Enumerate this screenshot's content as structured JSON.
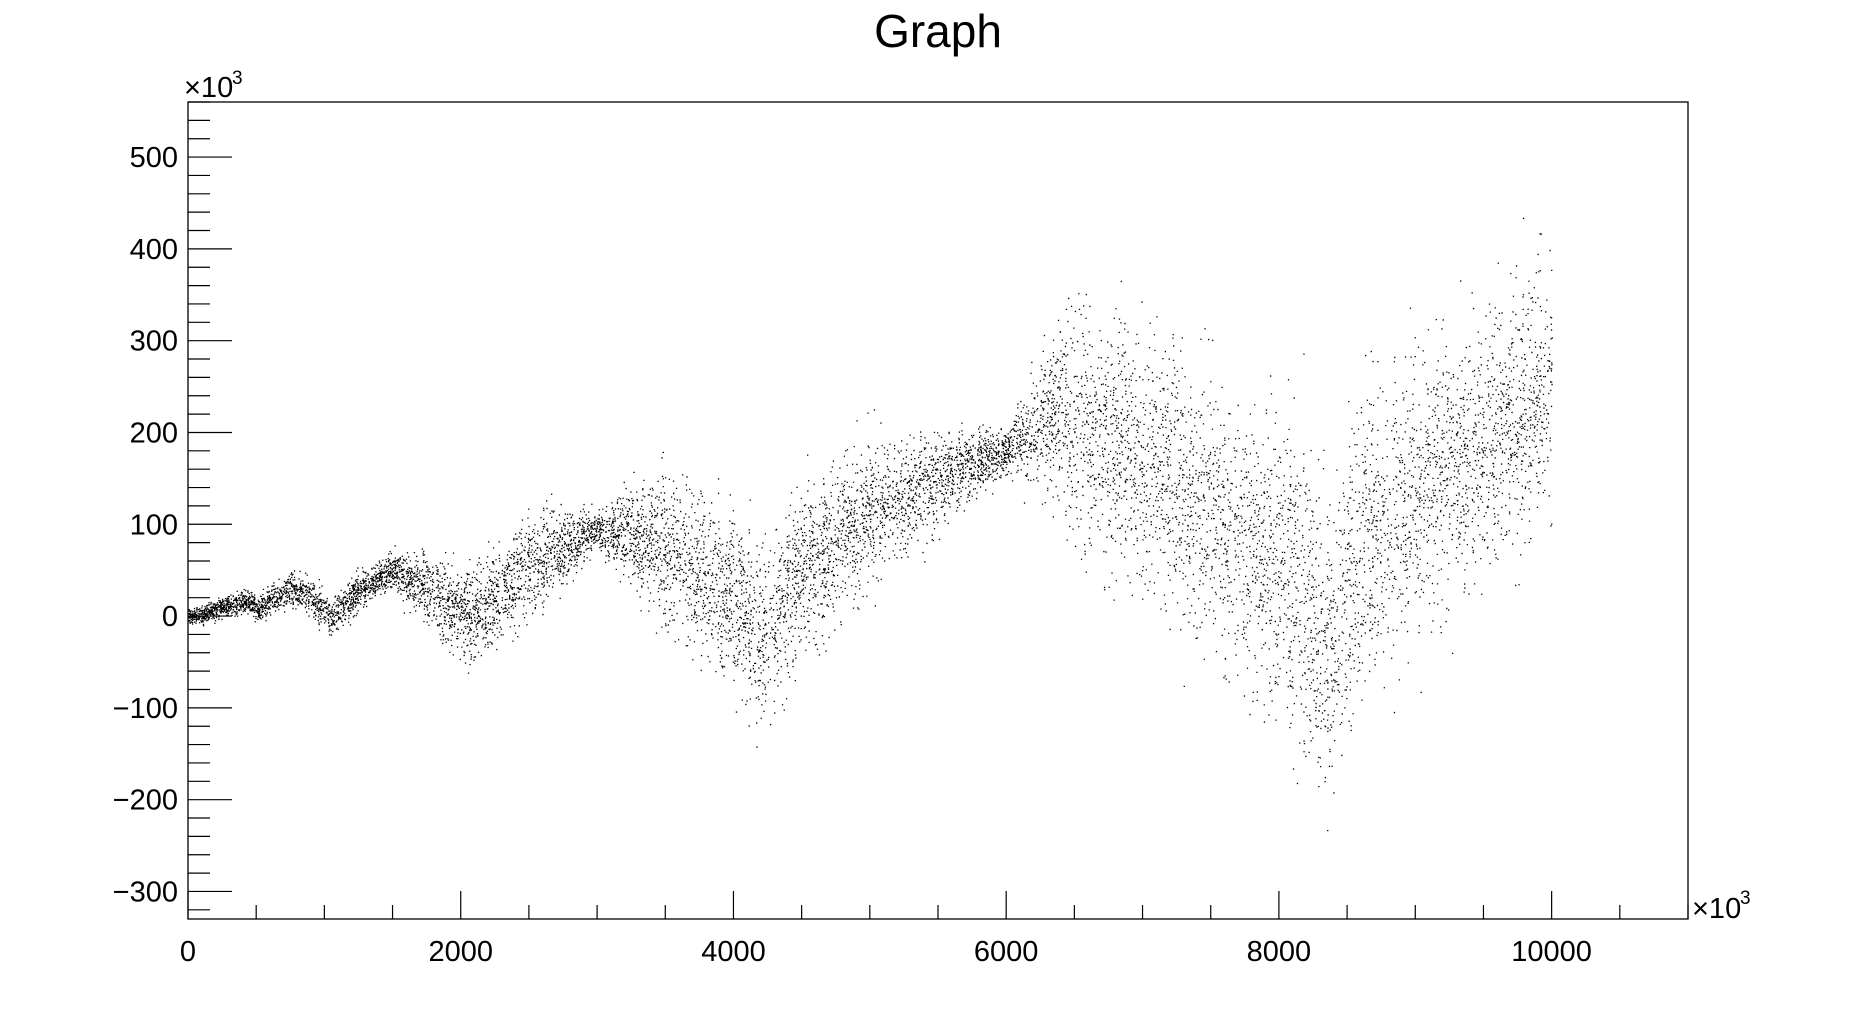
{
  "chart_data": {
    "type": "scatter",
    "title": "Graph",
    "xlabel": "",
    "ylabel": "",
    "x_multiplier_label": "×10",
    "x_multiplier_exp": "3",
    "y_multiplier_label": "×10",
    "y_multiplier_exp": "3",
    "xlim": [
      0,
      11000
    ],
    "ylim": [
      -330,
      560
    ],
    "x_ticks": [
      0,
      2000,
      4000,
      6000,
      8000,
      10000
    ],
    "x_tick_labels": [
      "0",
      "2000",
      "4000",
      "6000",
      "8000",
      "10000"
    ],
    "y_ticks": [
      -300,
      -200,
      -100,
      0,
      100,
      200,
      300,
      400,
      500
    ],
    "y_tick_labels": [
      "−300",
      "−200",
      "−100",
      "0",
      "100",
      "200",
      "300",
      "400",
      "500"
    ],
    "grid": false,
    "marker_color": "#000000",
    "series": [
      {
        "centerline": [
          [
            0,
            0
          ],
          [
            150,
            5
          ],
          [
            300,
            12
          ],
          [
            450,
            18
          ],
          [
            500,
            5
          ],
          [
            600,
            18
          ],
          [
            750,
            30
          ],
          [
            900,
            20
          ],
          [
            1050,
            0
          ],
          [
            1200,
            20
          ],
          [
            1350,
            38
          ],
          [
            1500,
            50
          ],
          [
            1750,
            30
          ],
          [
            2000,
            5
          ],
          [
            2100,
            0
          ],
          [
            2300,
            30
          ],
          [
            2550,
            60
          ],
          [
            2800,
            80
          ],
          [
            3000,
            95
          ],
          [
            3250,
            90
          ],
          [
            3500,
            75
          ],
          [
            3800,
            45
          ],
          [
            4000,
            20
          ],
          [
            4200,
            -25
          ],
          [
            4450,
            45
          ],
          [
            4750,
            80
          ],
          [
            5000,
            110
          ],
          [
            5300,
            135
          ],
          [
            5550,
            155
          ],
          [
            5800,
            170
          ],
          [
            6000,
            180
          ],
          [
            6300,
            220
          ],
          [
            6600,
            210
          ],
          [
            7000,
            170
          ],
          [
            7400,
            130
          ],
          [
            7800,
            80
          ],
          [
            8100,
            40
          ],
          [
            8350,
            -40
          ],
          [
            8600,
            80
          ],
          [
            8900,
            130
          ],
          [
            9200,
            160
          ],
          [
            9500,
            190
          ],
          [
            9800,
            230
          ],
          [
            10000,
            260
          ]
        ],
        "spread": [
          [
            0,
            4
          ],
          [
            1000,
            10
          ],
          [
            1500,
            10
          ],
          [
            2000,
            25
          ],
          [
            2600,
            25
          ],
          [
            3000,
            10
          ],
          [
            3500,
            40
          ],
          [
            4200,
            45
          ],
          [
            4800,
            40
          ],
          [
            5500,
            25
          ],
          [
            6000,
            10
          ],
          [
            6500,
            60
          ],
          [
            7500,
            75
          ],
          [
            8300,
            80
          ],
          [
            9000,
            75
          ],
          [
            10000,
            70
          ]
        ],
        "x_range": [
          0,
          10000
        ],
        "point_count": 60000
      }
    ]
  }
}
